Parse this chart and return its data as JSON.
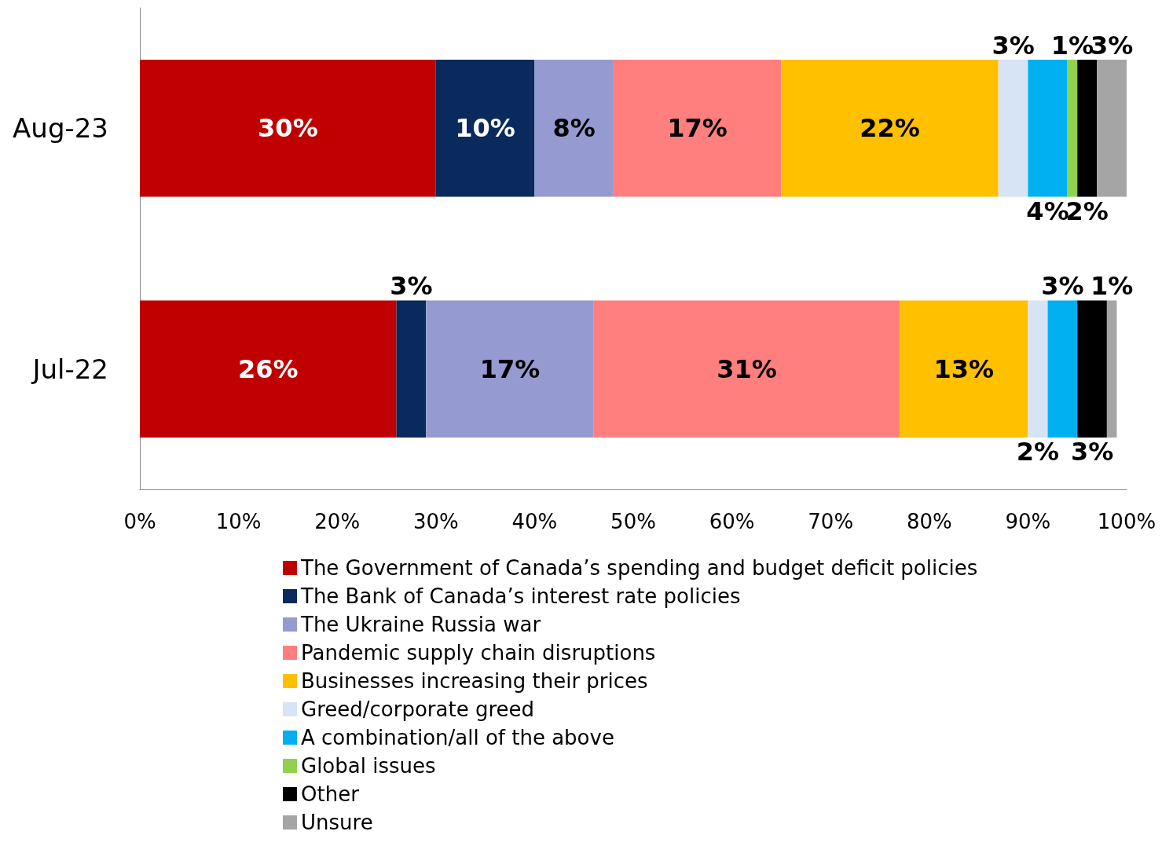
{
  "chart_data": {
    "type": "bar",
    "orientation": "horizontal",
    "stacked": true,
    "legend": "bottom",
    "grid": false,
    "categories": [
      "Aug-23",
      "Jul-22"
    ],
    "xlim": [
      0,
      100
    ],
    "xticks": [
      {
        "value": 0,
        "label": "0%"
      },
      {
        "value": 10,
        "label": "10%"
      },
      {
        "value": 20,
        "label": "20%"
      },
      {
        "value": 30,
        "label": "30%"
      },
      {
        "value": 40,
        "label": "40%"
      },
      {
        "value": 50,
        "label": "50%"
      },
      {
        "value": 60,
        "label": "60%"
      },
      {
        "value": 70,
        "label": "70%"
      },
      {
        "value": 80,
        "label": "80%"
      },
      {
        "value": 90,
        "label": "90%"
      },
      {
        "value": 100,
        "label": "100%"
      }
    ],
    "series": [
      {
        "name": "The Government of Canada’s spending and budget deficit policies",
        "color": "#c00000",
        "values": [
          30,
          26
        ],
        "value_labels": [
          "30%",
          "26%"
        ]
      },
      {
        "name": "The Bank of Canada’s interest rate policies",
        "color": "#0a2a5e",
        "values": [
          10,
          3
        ],
        "value_labels": [
          "10%",
          "3%"
        ]
      },
      {
        "name": "The Ukraine Russia war",
        "color": "#959bd0",
        "values": [
          8,
          17
        ],
        "value_labels": [
          "8%",
          "17%"
        ]
      },
      {
        "name": "Pandemic supply chain disruptions",
        "color": "#ff7f7f",
        "values": [
          17,
          31
        ],
        "value_labels": [
          "17%",
          "31%"
        ]
      },
      {
        "name": "Businesses increasing their prices",
        "color": "#ffc000",
        "values": [
          22,
          13
        ],
        "value_labels": [
          "22%",
          "13%"
        ]
      },
      {
        "name": "Greed/corporate greed",
        "color": "#d6e4f5",
        "values": [
          3,
          2
        ],
        "value_labels": [
          "3%",
          "2%"
        ]
      },
      {
        "name": "A combination/all of the above",
        "color": "#00b0f0",
        "values": [
          4,
          3
        ],
        "value_labels": [
          "4%",
          "3%"
        ]
      },
      {
        "name": "Global issues",
        "color": "#92d050",
        "values": [
          1,
          null
        ],
        "value_labels": [
          "1%",
          null
        ]
      },
      {
        "name": "Other",
        "color": "#000000",
        "values": [
          2,
          3
        ],
        "value_labels": [
          "2%",
          "3%"
        ]
      },
      {
        "name": "Unsure",
        "color": "#a5a5a5",
        "values": [
          3,
          1
        ],
        "value_labels": [
          "3%",
          "1%"
        ]
      }
    ]
  }
}
